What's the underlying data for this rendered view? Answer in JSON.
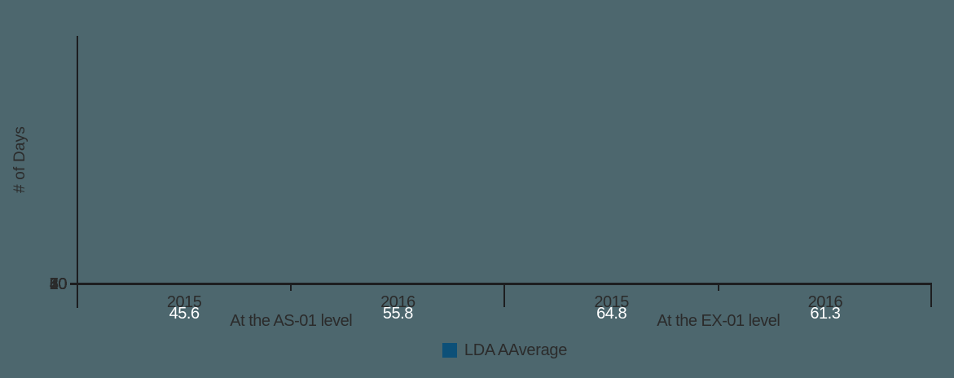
{
  "colors": {
    "background": "#4d676e",
    "bar": "#0d5078",
    "gridline": "#a7aaa8",
    "axis": "#1d1e20",
    "text": "#2b2b2b",
    "value_text": "#ffffff"
  },
  "chart_data": {
    "type": "bar",
    "title": "",
    "ylabel": "# of Days",
    "xlabel": "",
    "ylim": [
      0,
      70
    ],
    "yticks": [
      0,
      10,
      20,
      30,
      40,
      50,
      60,
      70
    ],
    "grid": true,
    "legend": [
      "LDA AAverage"
    ],
    "legend_position": "bottom-center",
    "groups": [
      {
        "label": "At the AS-01 level",
        "categories": [
          "2015",
          "2016"
        ],
        "values": [
          45.6,
          55.8
        ],
        "value_labels": [
          "45.6",
          "55.8"
        ]
      },
      {
        "label": "At the EX-01 level",
        "categories": [
          "2015",
          "2016"
        ],
        "values": [
          64.8,
          61.3
        ],
        "value_labels": [
          "64.8",
          "61.3"
        ]
      }
    ],
    "series": [
      {
        "name": "LDA AAverage",
        "values": [
          45.6,
          55.8,
          64.8,
          61.3
        ]
      }
    ]
  }
}
